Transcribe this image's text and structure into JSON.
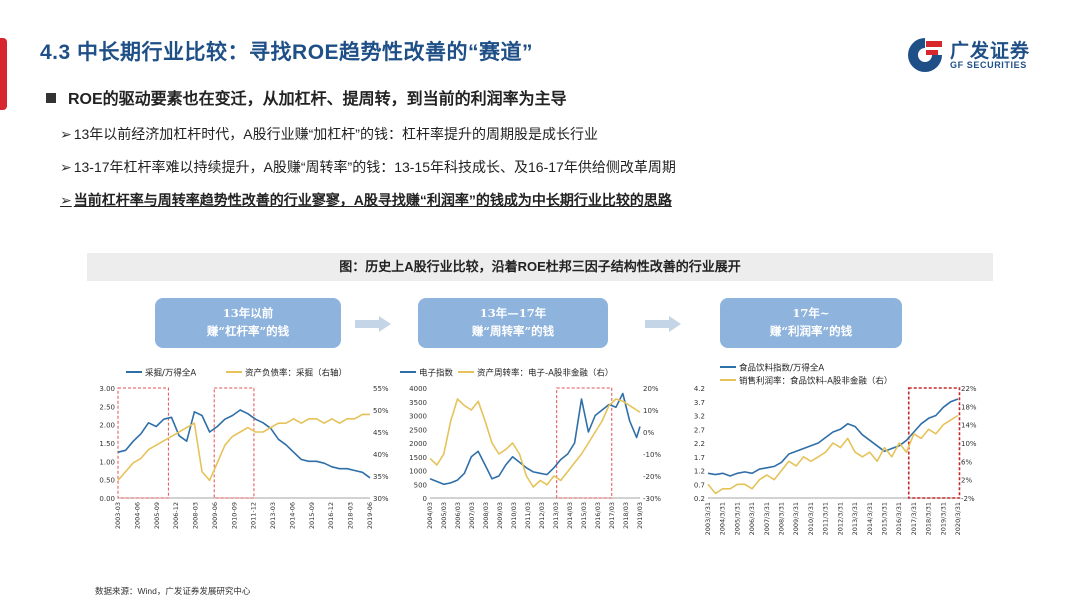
{
  "header": {
    "title": "4.3 中长期行业比较：寻找ROE趋势性改善的“赛道”",
    "logo_cn": "广发证券",
    "logo_en": "GF SECURITIES"
  },
  "bullets": {
    "main": "ROE的驱动要素也在变迁，从加杠杆、提周转，到当前的利润率为主导",
    "sub": [
      "13年以前经济加杠杆时代，A股行业赚“加杠杆”的钱：杠杆率提升的周期股是成长行业",
      "13-17年杠杆率难以持续提升，A股赚“周转率”的钱：13-15年科技成长、及16-17年供给侧改革周期",
      "当前杠杆率与周转率趋势性改善的行业寥寥，A股寻找赚“利润率”的钱成为中长期行业比较的思路"
    ]
  },
  "figure": {
    "title": "图：历史上A股行业比较，沿着ROE杜邦三因子结构性改善的行业展开",
    "phases": [
      {
        "line1": "13年以前",
        "line2": "赚“杠杆率”的钱"
      },
      {
        "line1": "13年—17年",
        "line2": "赚“周转率”的钱"
      },
      {
        "line1": "17年~",
        "line2": "赚“利润率”的钱"
      }
    ]
  },
  "footer": {
    "source": "数据来源：Wind，广发证券发展研究中心"
  },
  "colors": {
    "blue": "#2f6fa8",
    "gold": "#e5c35a",
    "red": "#d7262e",
    "box": "#8eb3dc",
    "title": "#1e4f86"
  },
  "chart_data": [
    {
      "type": "line",
      "legend_placement": "top",
      "series": [
        {
          "name": "采掘/万得全A",
          "axis": "left",
          "color": "#2f6fa8",
          "x": [
            2003.0,
            2003.5,
            2004.0,
            2004.5,
            2005.0,
            2005.5,
            2006.0,
            2006.5,
            2007.0,
            2007.5,
            2008.0,
            2008.5,
            2009.0,
            2009.5,
            2010.0,
            2010.5,
            2011.0,
            2011.5,
            2012.0,
            2012.5,
            2013.0,
            2013.5,
            2014.0,
            2014.5,
            2015.0,
            2015.5,
            2016.0,
            2016.5,
            2017.0,
            2017.5,
            2018.0,
            2018.5,
            2019.0,
            2019.5
          ],
          "y": [
            1.25,
            1.3,
            1.55,
            1.75,
            2.05,
            1.95,
            2.15,
            2.2,
            1.7,
            1.55,
            2.35,
            2.25,
            1.8,
            1.95,
            2.15,
            2.25,
            2.4,
            2.3,
            2.15,
            2.05,
            1.9,
            1.6,
            1.45,
            1.25,
            1.05,
            1.0,
            1.0,
            0.95,
            0.85,
            0.8,
            0.8,
            0.75,
            0.7,
            0.55
          ]
        },
        {
          "name": "资产负债率：采掘（右轴）",
          "axis": "right",
          "color": "#e5c35a",
          "x": [
            2003.0,
            2003.5,
            2004.0,
            2004.5,
            2005.0,
            2005.5,
            2006.0,
            2006.5,
            2007.0,
            2007.5,
            2008.0,
            2008.5,
            2009.0,
            2009.5,
            2010.0,
            2010.5,
            2011.0,
            2011.5,
            2012.0,
            2012.5,
            2013.0,
            2013.5,
            2014.0,
            2014.5,
            2015.0,
            2015.5,
            2016.0,
            2016.5,
            2017.0,
            2017.5,
            2018.0,
            2018.5,
            2019.0,
            2019.5
          ],
          "y": [
            34,
            36,
            38,
            39,
            41,
            42,
            43,
            44,
            45,
            46,
            47,
            36,
            34,
            38,
            42,
            44,
            45,
            46,
            45,
            45,
            46,
            47,
            47,
            48,
            47,
            48,
            48,
            47,
            48,
            47,
            48,
            48,
            49,
            49
          ]
        }
      ],
      "x_ticks": [
        "2003-03",
        "2004-06",
        "2005-09",
        "2006-12",
        "2008-03",
        "2009-06",
        "2010-09",
        "2011-12",
        "2013-03",
        "2014-06",
        "2015-09",
        "2016-12",
        "2018-03",
        "2019-06"
      ],
      "ylim_left": [
        0,
        3.0
      ],
      "yticks_left": [
        "0.00",
        "0.50",
        "1.00",
        "1.50",
        "2.00",
        "2.50",
        "3.00"
      ],
      "ylim_right": [
        30,
        55
      ],
      "yticks_right": [
        "30%",
        "35%",
        "40%",
        "45%",
        "50%",
        "55%"
      ],
      "highlights": [
        [
          2003.0,
          2006.3
        ],
        [
          2009.3,
          2011.9
        ]
      ]
    },
    {
      "type": "line",
      "legend_placement": "top",
      "series": [
        {
          "name": "电子指数",
          "axis": "left",
          "color": "#2f6fa8",
          "x": [
            2004.0,
            2004.5,
            2005.0,
            2005.5,
            2006.0,
            2006.5,
            2007.0,
            2007.5,
            2008.0,
            2008.5,
            2009.0,
            2009.5,
            2010.0,
            2010.5,
            2011.0,
            2011.5,
            2012.0,
            2012.5,
            2013.0,
            2013.5,
            2014.0,
            2014.5,
            2015.0,
            2015.5,
            2016.0,
            2016.5,
            2017.0,
            2017.5,
            2018.0,
            2018.5,
            2019.0,
            2019.25
          ],
          "y": [
            700,
            600,
            500,
            550,
            650,
            900,
            1500,
            1700,
            1200,
            700,
            800,
            1200,
            1500,
            1300,
            1100,
            950,
            900,
            850,
            1100,
            1400,
            1600,
            2000,
            3600,
            2400,
            3000,
            3200,
            3400,
            3300,
            3800,
            2800,
            2200,
            2600
          ]
        },
        {
          "name": "资产周转率：电子-A股非金融（右）",
          "axis": "right",
          "color": "#e5c35a",
          "x": [
            2004.0,
            2004.5,
            2005.0,
            2005.5,
            2006.0,
            2006.5,
            2007.0,
            2007.5,
            2008.0,
            2008.5,
            2009.0,
            2009.5,
            2010.0,
            2010.5,
            2011.0,
            2011.5,
            2012.0,
            2012.5,
            2013.0,
            2013.5,
            2014.0,
            2014.5,
            2015.0,
            2015.5,
            2016.0,
            2016.5,
            2017.0,
            2017.5,
            2018.0,
            2018.5,
            2019.0,
            2019.25
          ],
          "y": [
            -12,
            -15,
            -10,
            5,
            15,
            12,
            10,
            14,
            5,
            -5,
            -10,
            -8,
            -5,
            -10,
            -20,
            -25,
            -22,
            -24,
            -20,
            -22,
            -18,
            -14,
            -10,
            -5,
            0,
            5,
            12,
            15,
            14,
            12,
            10,
            9
          ]
        }
      ],
      "x_ticks": [
        "2004/03",
        "2005/03",
        "2006/03",
        "2007/03",
        "2008/03",
        "2009/03",
        "2010/03",
        "2011/03",
        "2012/03",
        "2013/03",
        "2014/03",
        "2015/03",
        "2016/03",
        "2017/03",
        "2018/03",
        "2019/03"
      ],
      "ylim_left": [
        0,
        4000
      ],
      "yticks_left": [
        "0",
        "500",
        "1000",
        "1500",
        "2000",
        "2500",
        "3000",
        "3500",
        "4000"
      ],
      "ylim_right": [
        -30,
        20
      ],
      "yticks_right": [
        "-30%",
        "-20%",
        "-10%",
        "0%",
        "10%",
        "20%"
      ],
      "highlights": [
        [
          2013.2,
          2017.2
        ]
      ]
    },
    {
      "type": "line",
      "legend_placement": "top",
      "series": [
        {
          "name": "食品饮料指数/万得全A",
          "axis": "left",
          "color": "#2f6fa8",
          "x": [
            2003.25,
            2003.75,
            2004.25,
            2004.75,
            2005.25,
            2005.75,
            2006.25,
            2006.75,
            2007.25,
            2007.75,
            2008.25,
            2008.75,
            2009.25,
            2009.75,
            2010.25,
            2010.75,
            2011.25,
            2011.75,
            2012.25,
            2012.75,
            2013.25,
            2013.75,
            2014.25,
            2014.75,
            2015.25,
            2015.75,
            2016.25,
            2016.75,
            2017.25,
            2017.75,
            2018.25,
            2018.75,
            2019.25,
            2019.75,
            2020.25
          ],
          "y": [
            1.1,
            1.05,
            1.1,
            1.0,
            1.1,
            1.15,
            1.1,
            1.25,
            1.3,
            1.35,
            1.5,
            1.8,
            1.9,
            2.0,
            2.1,
            2.2,
            2.4,
            2.6,
            2.7,
            2.9,
            2.8,
            2.5,
            2.3,
            2.1,
            1.9,
            2.0,
            2.1,
            2.3,
            2.6,
            2.9,
            3.1,
            3.2,
            3.5,
            3.7,
            3.8
          ]
        },
        {
          "name": "销售利润率：食品饮料-A股非金融（右）",
          "axis": "right",
          "color": "#e5c35a",
          "x": [
            2003.25,
            2003.75,
            2004.25,
            2004.75,
            2005.25,
            2005.75,
            2006.25,
            2006.75,
            2007.25,
            2007.75,
            2008.25,
            2008.75,
            2009.25,
            2009.75,
            2010.25,
            2010.75,
            2011.25,
            2011.75,
            2012.25,
            2012.75,
            2013.25,
            2013.75,
            2014.25,
            2014.75,
            2015.25,
            2015.75,
            2016.25,
            2016.75,
            2017.25,
            2017.75,
            2018.25,
            2018.75,
            2019.25,
            2019.75,
            2020.25
          ],
          "y": [
            1,
            -1,
            0,
            0,
            1,
            1,
            0,
            2,
            3,
            2,
            4,
            6,
            5,
            7,
            6,
            7,
            8,
            10,
            9,
            11,
            8,
            7,
            8,
            6,
            9,
            7,
            10,
            8,
            12,
            11,
            13,
            12,
            14,
            15,
            16
          ]
        }
      ],
      "x_ticks": [
        "2003/3/31",
        "2004/3/31",
        "2005/3/31",
        "2006/3/31",
        "2007/3/31",
        "2008/3/31",
        "2009/3/31",
        "2010/3/31",
        "2011/3/31",
        "2012/3/31",
        "2013/3/31",
        "2014/3/31",
        "2015/3/31",
        "2016/3/31",
        "2017/3/31",
        "2018/3/31",
        "2019/3/31",
        "2020/3/31"
      ],
      "ylim_left": [
        0.2,
        4.2
      ],
      "yticks_left": [
        "0.2",
        "0.7",
        "1.2",
        "1.7",
        "2.2",
        "2.7",
        "3.2",
        "3.7",
        "4.2"
      ],
      "ylim_right": [
        -2,
        22
      ],
      "yticks_right": [
        "-2%",
        "2%",
        "6%",
        "10%",
        "14%",
        "18%",
        "22%"
      ],
      "highlights": [
        [
          2016.9,
          2020.35
        ]
      ]
    }
  ]
}
